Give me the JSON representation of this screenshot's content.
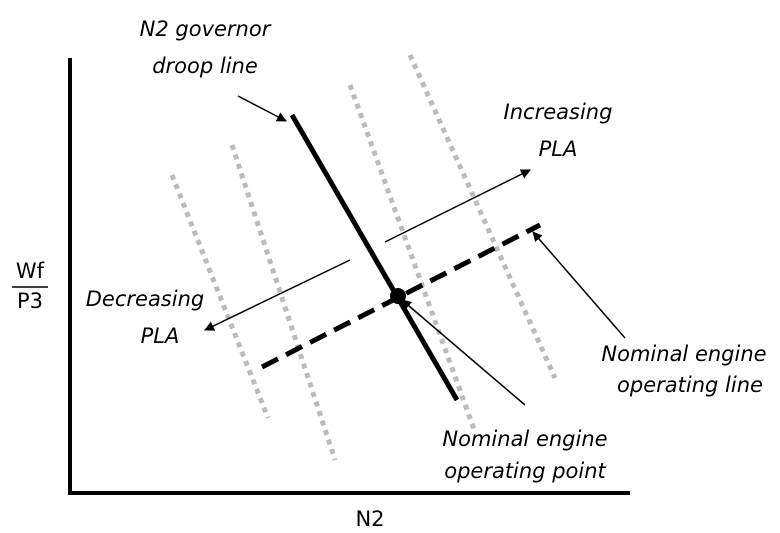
{
  "axes": {
    "x_label": "N2",
    "y_label": {
      "numerator": "Wf",
      "denominator": "P3"
    }
  },
  "annotations": {
    "droop_line": [
      "N2 governor",
      "droop line"
    ],
    "increasing": [
      "Increasing",
      "PLA"
    ],
    "decreasing": [
      "Decreasing",
      "PLA"
    ],
    "operating_line": [
      "Nominal engine",
      "operating line"
    ],
    "operating_point": [
      "Nominal engine",
      "operating point"
    ]
  }
}
